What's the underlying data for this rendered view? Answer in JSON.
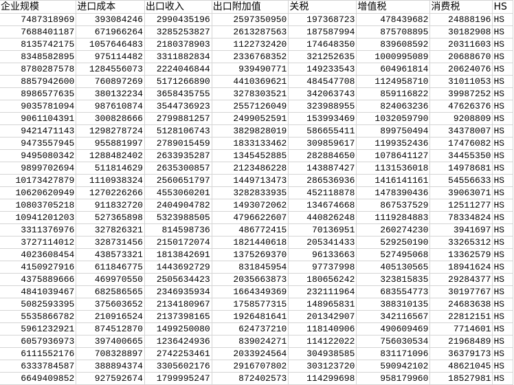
{
  "headers": [
    "企业规模",
    "进口成本",
    "出口收入",
    "出口附加值",
    "关税",
    "增值税",
    "消费税",
    "HS"
  ],
  "rows": [
    [
      "7487318969",
      "393084246",
      "2990435196",
      "2597350950",
      "197368723",
      "478439682",
      "24888196",
      "HS"
    ],
    [
      "7688401187",
      "671966264",
      "3285253827",
      "2613287563",
      "187587994",
      "875708895",
      "30182908",
      "HS"
    ],
    [
      "8135742175",
      "1057646483",
      "2180378903",
      "1122732420",
      "174648350",
      "839608592",
      "20311603",
      "HS"
    ],
    [
      "8348582895",
      "975114482",
      "3311882834",
      "2336768352",
      "321252635",
      "1000995089",
      "20688670",
      "HS"
    ],
    [
      "8780287578",
      "1284556073",
      "2224046844",
      "939490771",
      "149233543",
      "604961814",
      "20624076",
      "HS"
    ],
    [
      "8857942600",
      "760897269",
      "5171266890",
      "4410369621",
      "484547708",
      "1124958710",
      "31011053",
      "HS"
    ],
    [
      "8986577635",
      "380132234",
      "3658435755",
      "3278303521",
      "342063743",
      "859116822",
      "39987252",
      "HS"
    ],
    [
      "9035781094",
      "987610874",
      "3544736923",
      "2557126049",
      "323988955",
      "824063236",
      "47626376",
      "HS"
    ],
    [
      "9061104391",
      "300828666",
      "2799881257",
      "2499052591",
      "153993469",
      "1032059790",
      "9208809",
      "HS"
    ],
    [
      "9421471143",
      "1298278724",
      "5128106743",
      "3829828019",
      "586655411",
      "899750494",
      "34378007",
      "HS"
    ],
    [
      "9473557945",
      "955881997",
      "2789015459",
      "1833133462",
      "309859617",
      "1199352436",
      "17476082",
      "HS"
    ],
    [
      "9495080342",
      "1288482402",
      "2633935287",
      "1345452885",
      "282884650",
      "1078641127",
      "34455350",
      "HS"
    ],
    [
      "9899702694",
      "511814629",
      "2635300857",
      "2123486228",
      "143887427",
      "1131536018",
      "14978681",
      "HS"
    ],
    [
      "10173427879",
      "1110938324",
      "2560651797",
      "1449713473",
      "286536936",
      "1416141161",
      "54556633",
      "HS"
    ],
    [
      "10620620949",
      "1270226266",
      "4553060201",
      "3282833935",
      "452118878",
      "1478390436",
      "39063071",
      "HS"
    ],
    [
      "10803705218",
      "911832720",
      "2404904782",
      "1493072062",
      "134674668",
      "867537529",
      "12511277",
      "HS"
    ],
    [
      "10941201203",
      "527365898",
      "5323988505",
      "4796622607",
      "440826248",
      "1119284883",
      "78334824",
      "HS"
    ],
    [
      "3311376976",
      "327826321",
      "814598736",
      "486772415",
      "70136951",
      "260274230",
      "3941697",
      "HS"
    ],
    [
      "3727114012",
      "328731456",
      "2150172074",
      "1821440618",
      "205341433",
      "529250190",
      "33265312",
      "HS"
    ],
    [
      "4023608454",
      "438573321",
      "1813842691",
      "1375269370",
      "96133663",
      "527495068",
      "13362579",
      "HS"
    ],
    [
      "4150927916",
      "611846775",
      "1443692729",
      "831845954",
      "97737998",
      "405130565",
      "18941624",
      "HS"
    ],
    [
      "4375889666",
      "469970550",
      "2505634423",
      "2035663873",
      "180656242",
      "323815835",
      "29284377",
      "HS"
    ],
    [
      "4841039467",
      "682586565",
      "2346935934",
      "1664349369",
      "232111964",
      "683554773",
      "30197767",
      "HS"
    ],
    [
      "5082593395",
      "375603652",
      "2134180967",
      "1758577315",
      "148965831",
      "388310135",
      "24683638",
      "HS"
    ],
    [
      "5535866782",
      "210916524",
      "2137398165",
      "1926481641",
      "201342907",
      "342116567",
      "22812151",
      "HS"
    ],
    [
      "5961232921",
      "874512870",
      "1499250080",
      "624737210",
      "118140906",
      "490609469",
      "7714601",
      "HS"
    ],
    [
      "6057936973",
      "397400665",
      "1236424936",
      "839024271",
      "114122022",
      "756030534",
      "21968489",
      "HS"
    ],
    [
      "6111552176",
      "708328897",
      "2742253461",
      "2033924564",
      "304938585",
      "831171096",
      "36379173",
      "HS"
    ],
    [
      "6333784587",
      "388894374",
      "3305602176",
      "2916707802",
      "303123720",
      "590942102",
      "48621045",
      "HS"
    ],
    [
      "6649409852",
      "927592674",
      "1799995247",
      "872402573",
      "114299698",
      "958179960",
      "18527981",
      "HS"
    ]
  ]
}
